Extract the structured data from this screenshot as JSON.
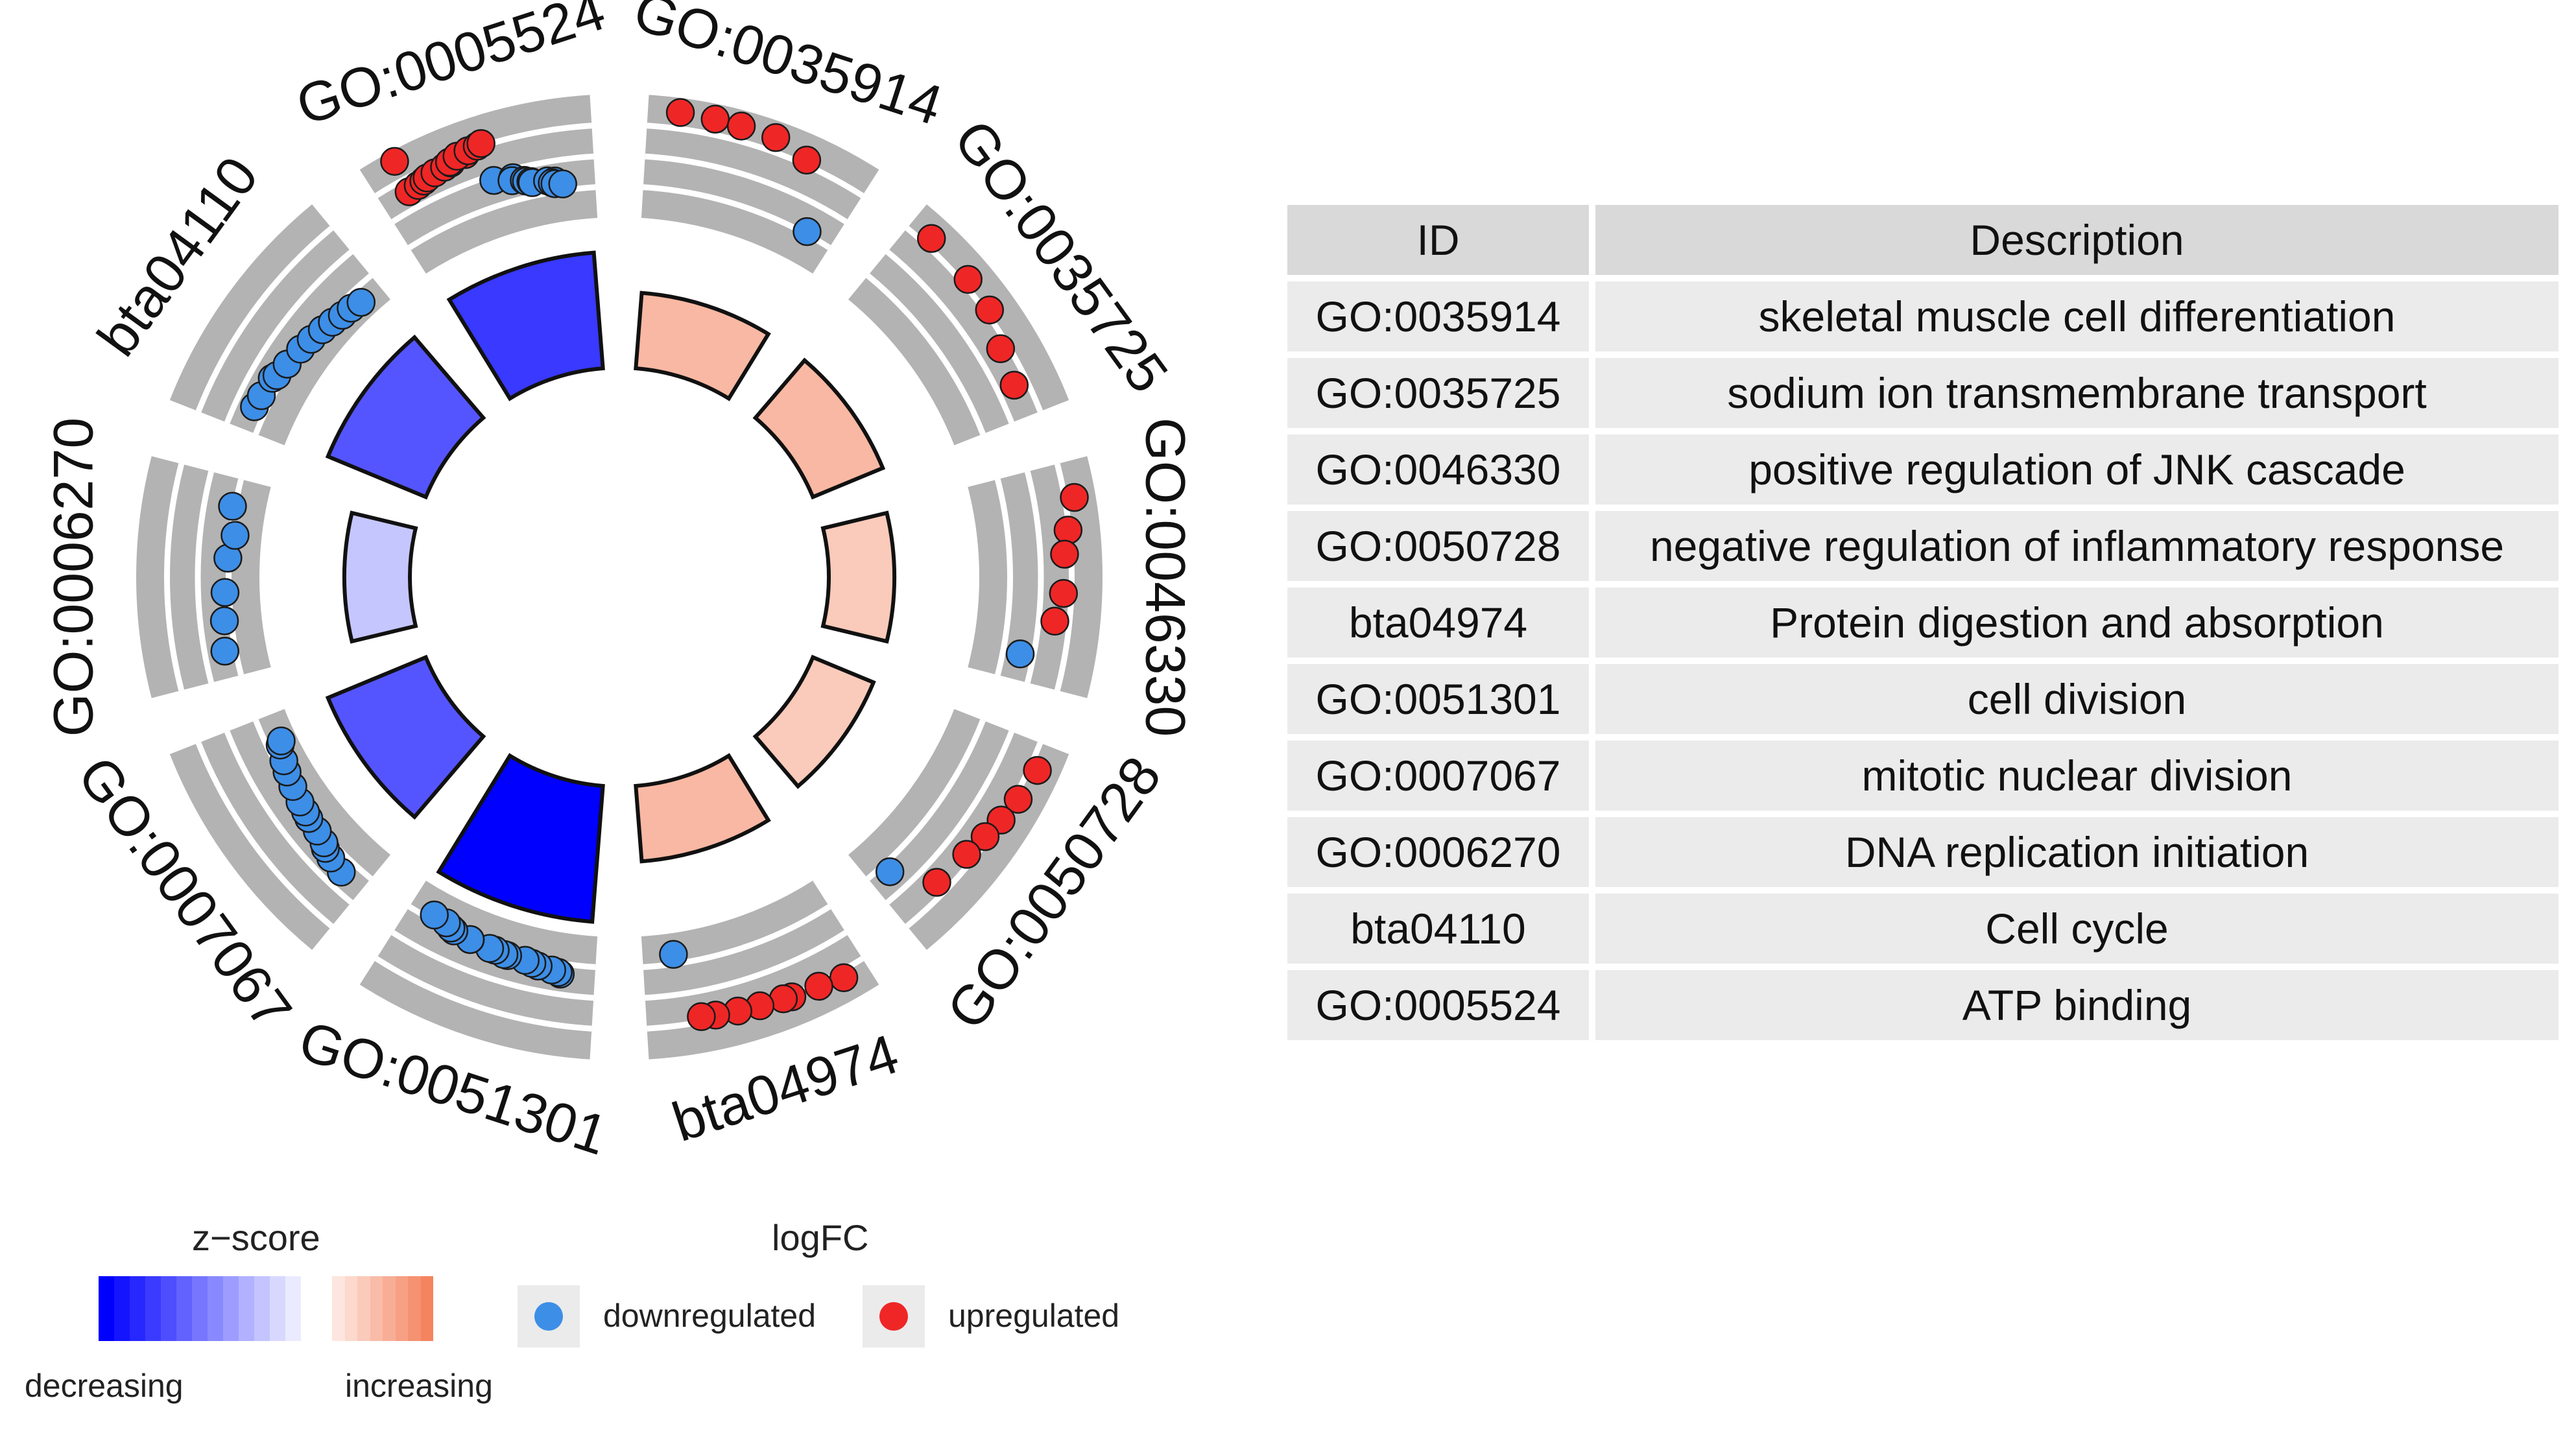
{
  "chart_data": {
    "type": "circular-go-plot",
    "terms": [
      {
        "id": "GO:0035914",
        "zscore": 1.5,
        "points": [
          {
            "logFC": 3.5,
            "dir": "up"
          },
          {
            "logFC": 3.45,
            "dir": "up"
          },
          {
            "logFC": 3.4,
            "dir": "up"
          },
          {
            "logFC": 3.35,
            "dir": "up"
          },
          {
            "logFC": 2.65,
            "dir": "up"
          },
          {
            "logFC": -2.1,
            "dir": "down"
          }
        ]
      },
      {
        "id": "GO:0035725",
        "zscore": 1.5,
        "points": [
          {
            "logFC": 2.9,
            "dir": "up"
          },
          {
            "logFC": 2.75,
            "dir": "up"
          },
          {
            "logFC": 2.6,
            "dir": "up"
          },
          {
            "logFC": 1.7,
            "dir": "up"
          },
          {
            "logFC": 1.3,
            "dir": "up"
          }
        ]
      },
      {
        "id": "GO:0046330",
        "zscore": 1.0,
        "points": [
          {
            "logFC": 3.0,
            "dir": "up"
          },
          {
            "logFC": 2.2,
            "dir": "up"
          },
          {
            "logFC": 1.8,
            "dir": "up"
          },
          {
            "logFC": 1.7,
            "dir": "up"
          },
          {
            "logFC": 1.2,
            "dir": "up"
          },
          {
            "logFC": -1.0,
            "dir": "down"
          }
        ]
      },
      {
        "id": "GO:0050728",
        "zscore": 1.0,
        "points": [
          {
            "logFC": 2.9,
            "dir": "up"
          },
          {
            "logFC": 2.6,
            "dir": "up"
          },
          {
            "logFC": 2.3,
            "dir": "up"
          },
          {
            "logFC": 2.0,
            "dir": "up"
          },
          {
            "logFC": 1.7,
            "dir": "up"
          },
          {
            "logFC": 1.4,
            "dir": "up"
          },
          {
            "logFC": -1.6,
            "dir": "down"
          }
        ]
      },
      {
        "id": "bta04974",
        "zscore": 1.5,
        "points": [
          {
            "logFC": 2.8,
            "dir": "up"
          },
          {
            "logFC": 2.5,
            "dir": "up"
          },
          {
            "logFC": 2.4,
            "dir": "up"
          },
          {
            "logFC": 2.3,
            "dir": "up"
          },
          {
            "logFC": 2.2,
            "dir": "up"
          },
          {
            "logFC": 2.1,
            "dir": "up"
          },
          {
            "logFC": 2.0,
            "dir": "up"
          },
          {
            "logFC": 1.9,
            "dir": "up"
          },
          {
            "logFC": -3.0,
            "dir": "down"
          }
        ]
      },
      {
        "id": "GO:0051301",
        "zscore": -4.5,
        "points": [
          {
            "logFC": -1.5,
            "dir": "down"
          },
          {
            "logFC": -1.6,
            "dir": "down"
          },
          {
            "logFC": -1.7,
            "dir": "down"
          },
          {
            "logFC": -1.8,
            "dir": "down"
          },
          {
            "logFC": -1.9,
            "dir": "down"
          },
          {
            "logFC": -2.0,
            "dir": "down"
          },
          {
            "logFC": -2.0,
            "dir": "down"
          },
          {
            "logFC": -2.0,
            "dir": "down"
          },
          {
            "logFC": -2.1,
            "dir": "down"
          },
          {
            "logFC": -2.1,
            "dir": "down"
          },
          {
            "logFC": -2.2,
            "dir": "down"
          },
          {
            "logFC": -2.2,
            "dir": "down"
          },
          {
            "logFC": -2.3,
            "dir": "down"
          },
          {
            "logFC": -2.4,
            "dir": "down"
          },
          {
            "logFC": -2.6,
            "dir": "down"
          },
          {
            "logFC": -2.7,
            "dir": "down"
          }
        ]
      },
      {
        "id": "GO:0007067",
        "zscore": -3.0,
        "points": [
          {
            "logFC": -1.2,
            "dir": "down"
          },
          {
            "logFC": -1.4,
            "dir": "down"
          },
          {
            "logFC": -1.6,
            "dir": "down"
          },
          {
            "logFC": -1.8,
            "dir": "down"
          },
          {
            "logFC": -2.0,
            "dir": "down"
          },
          {
            "logFC": -2.1,
            "dir": "down"
          },
          {
            "logFC": -2.2,
            "dir": "down"
          },
          {
            "logFC": -2.3,
            "dir": "down"
          },
          {
            "logFC": -2.5,
            "dir": "down"
          },
          {
            "logFC": -2.7,
            "dir": "down"
          },
          {
            "logFC": -2.9,
            "dir": "down"
          },
          {
            "logFC": -3.2,
            "dir": "down"
          },
          {
            "logFC": -3.4,
            "dir": "down"
          }
        ]
      },
      {
        "id": "GO:0006270",
        "zscore": -1.0,
        "points": [
          {
            "logFC": -1.5,
            "dir": "down"
          },
          {
            "logFC": -1.8,
            "dir": "down"
          },
          {
            "logFC": -2.0,
            "dir": "down"
          },
          {
            "logFC": -2.2,
            "dir": "down"
          },
          {
            "logFC": -2.6,
            "dir": "down"
          },
          {
            "logFC": -2.1,
            "dir": "down"
          }
        ]
      },
      {
        "id": "bta04110",
        "zscore": -3.0,
        "points": [
          {
            "logFC": -1.4,
            "dir": "down"
          },
          {
            "logFC": -1.5,
            "dir": "down"
          },
          {
            "logFC": -1.6,
            "dir": "down"
          },
          {
            "logFC": -1.8,
            "dir": "down"
          },
          {
            "logFC": -2.0,
            "dir": "down"
          },
          {
            "logFC": -2.2,
            "dir": "down"
          },
          {
            "logFC": -2.4,
            "dir": "down"
          },
          {
            "logFC": -2.6,
            "dir": "down"
          },
          {
            "logFC": -2.8,
            "dir": "down"
          },
          {
            "logFC": -3.0,
            "dir": "down"
          },
          {
            "logFC": -3.1,
            "dir": "down"
          },
          {
            "logFC": -3.3,
            "dir": "down"
          }
        ]
      },
      {
        "id": "GO:0005524",
        "zscore": -3.5,
        "points": [
          {
            "logFC": 3.8,
            "dir": "up"
          },
          {
            "logFC": 1.3,
            "dir": "up"
          },
          {
            "logFC": 1.4,
            "dir": "up"
          },
          {
            "logFC": 1.5,
            "dir": "up"
          },
          {
            "logFC": 1.6,
            "dir": "up"
          },
          {
            "logFC": 1.7,
            "dir": "up"
          },
          {
            "logFC": 1.8,
            "dir": "up"
          },
          {
            "logFC": 1.9,
            "dir": "up"
          },
          {
            "logFC": 2.0,
            "dir": "up"
          },
          {
            "logFC": 2.1,
            "dir": "up"
          },
          {
            "logFC": 2.2,
            "dir": "up"
          },
          {
            "logFC": 2.3,
            "dir": "up"
          },
          {
            "logFC": 2.4,
            "dir": "up"
          },
          {
            "logFC": 2.5,
            "dir": "up"
          },
          {
            "logFC": -0.4,
            "dir": "down"
          },
          {
            "logFC": -0.6,
            "dir": "down"
          },
          {
            "logFC": -0.8,
            "dir": "down"
          },
          {
            "logFC": -1.0,
            "dir": "down"
          },
          {
            "logFC": -1.1,
            "dir": "down"
          },
          {
            "logFC": -1.2,
            "dir": "down"
          },
          {
            "logFC": -1.3,
            "dir": "down"
          },
          {
            "logFC": -1.4,
            "dir": "down"
          },
          {
            "logFC": -1.5,
            "dir": "down"
          },
          {
            "logFC": -1.6,
            "dir": "down"
          },
          {
            "logFC": -1.7,
            "dir": "down"
          },
          {
            "logFC": -1.8,
            "dir": "down"
          }
        ]
      }
    ],
    "logfc_range": [
      -4,
      4
    ],
    "legend": {
      "zscore_title": "z−score",
      "zscore_low": "decreasing",
      "zscore_high": "increasing",
      "logfc_title": "logFC",
      "down_label": "downregulated",
      "up_label": "upregulated"
    },
    "colors": {
      "up": "#ef2626",
      "down": "#3d8ee6",
      "track": "#b3b3b3",
      "track_line": "#ffffff",
      "z_low": "#0000ff",
      "z_mid": "#ffffff",
      "z_high": "#f4845f"
    },
    "table": {
      "header": {
        "id": "ID",
        "description": "Description"
      },
      "rows": [
        {
          "id": "GO:0035914",
          "description": "skeletal muscle cell differentiation"
        },
        {
          "id": "GO:0035725",
          "description": "sodium ion transmembrane transport"
        },
        {
          "id": "GO:0046330",
          "description": "positive regulation of JNK cascade"
        },
        {
          "id": "GO:0050728",
          "description": "negative regulation of inflammatory response"
        },
        {
          "id": "bta04974",
          "description": "Protein digestion and absorption"
        },
        {
          "id": "GO:0051301",
          "description": "cell division"
        },
        {
          "id": "GO:0007067",
          "description": "mitotic nuclear division"
        },
        {
          "id": "GO:0006270",
          "description": "DNA replication initiation"
        },
        {
          "id": "bta04110",
          "description": "Cell cycle"
        },
        {
          "id": "GO:0005524",
          "description": "ATP binding"
        }
      ]
    }
  }
}
